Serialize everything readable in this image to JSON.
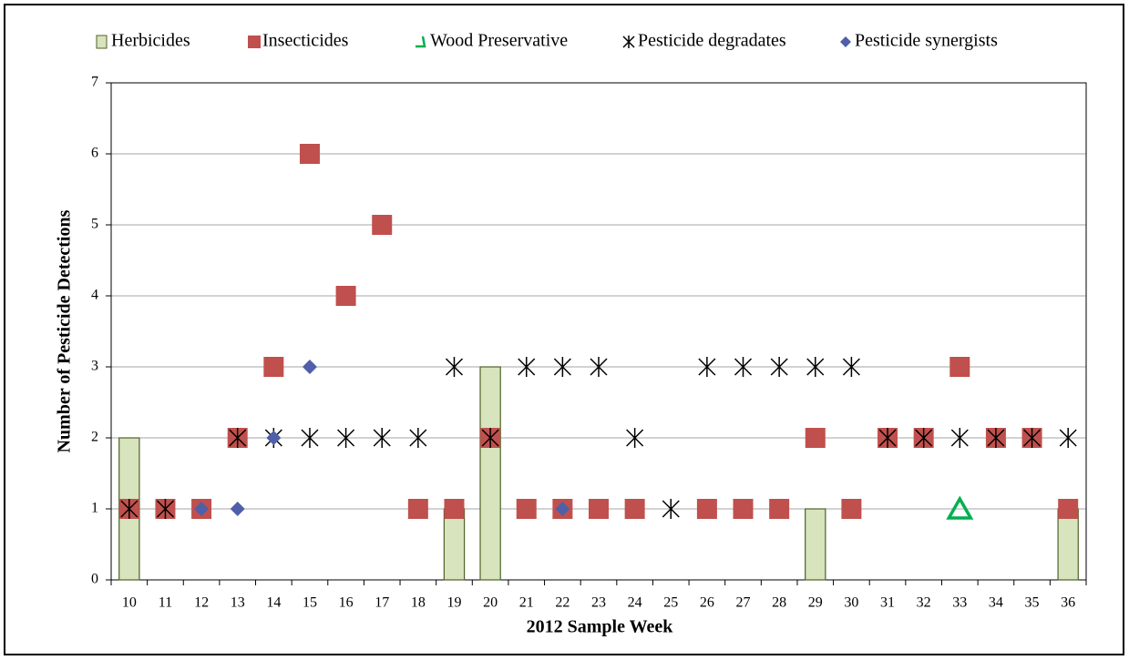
{
  "chart_data": {
    "type": "combo",
    "x_label": "2012 Sample Week",
    "y_label": "Number of Pesticide Detections",
    "categories": [
      "10",
      "11",
      "12",
      "13",
      "14",
      "15",
      "16",
      "17",
      "18",
      "19",
      "20",
      "21",
      "22",
      "23",
      "24",
      "25",
      "26",
      "27",
      "28",
      "29",
      "30",
      "31",
      "32",
      "33",
      "34",
      "35",
      "36"
    ],
    "ylim": [
      0,
      7
    ],
    "yticks": [
      0,
      1,
      2,
      3,
      4,
      5,
      6,
      7
    ],
    "grid": true,
    "legend": "top",
    "series": [
      {
        "name": "Herbicides",
        "kind": "bar",
        "color": "#d7e4bd",
        "edge": "#4f6228",
        "values": [
          2,
          null,
          null,
          null,
          null,
          null,
          null,
          null,
          null,
          1,
          3,
          null,
          null,
          null,
          null,
          null,
          null,
          null,
          null,
          1,
          null,
          null,
          null,
          null,
          null,
          null,
          1
        ]
      },
      {
        "name": "Insecticides",
        "kind": "square",
        "color": "#c0504d",
        "values": [
          1,
          1,
          1,
          2,
          3,
          6,
          4,
          5,
          1,
          1,
          2,
          1,
          1,
          1,
          1,
          null,
          1,
          1,
          1,
          2,
          1,
          2,
          2,
          3,
          2,
          2,
          1
        ]
      },
      {
        "name": "Wood Preservative",
        "kind": "triangle",
        "color": "#00b050",
        "values": [
          null,
          null,
          null,
          null,
          null,
          null,
          null,
          null,
          null,
          null,
          null,
          null,
          null,
          null,
          null,
          null,
          null,
          null,
          null,
          null,
          null,
          null,
          null,
          1,
          null,
          null,
          null
        ]
      },
      {
        "name": "Pesticide degradates",
        "kind": "asterisk",
        "color": "#000000",
        "values": [
          1,
          1,
          null,
          2,
          2,
          2,
          2,
          2,
          2,
          3,
          2,
          3,
          3,
          3,
          2,
          1,
          3,
          3,
          3,
          3,
          3,
          2,
          2,
          2,
          2,
          2,
          2
        ]
      },
      {
        "name": "Pesticide synergists",
        "kind": "diamond",
        "color": "#4f5fa8",
        "values": [
          null,
          null,
          1,
          1,
          2,
          3,
          null,
          null,
          null,
          null,
          null,
          null,
          1,
          null,
          null,
          null,
          null,
          null,
          null,
          null,
          null,
          null,
          null,
          null,
          null,
          null,
          null
        ]
      }
    ]
  }
}
